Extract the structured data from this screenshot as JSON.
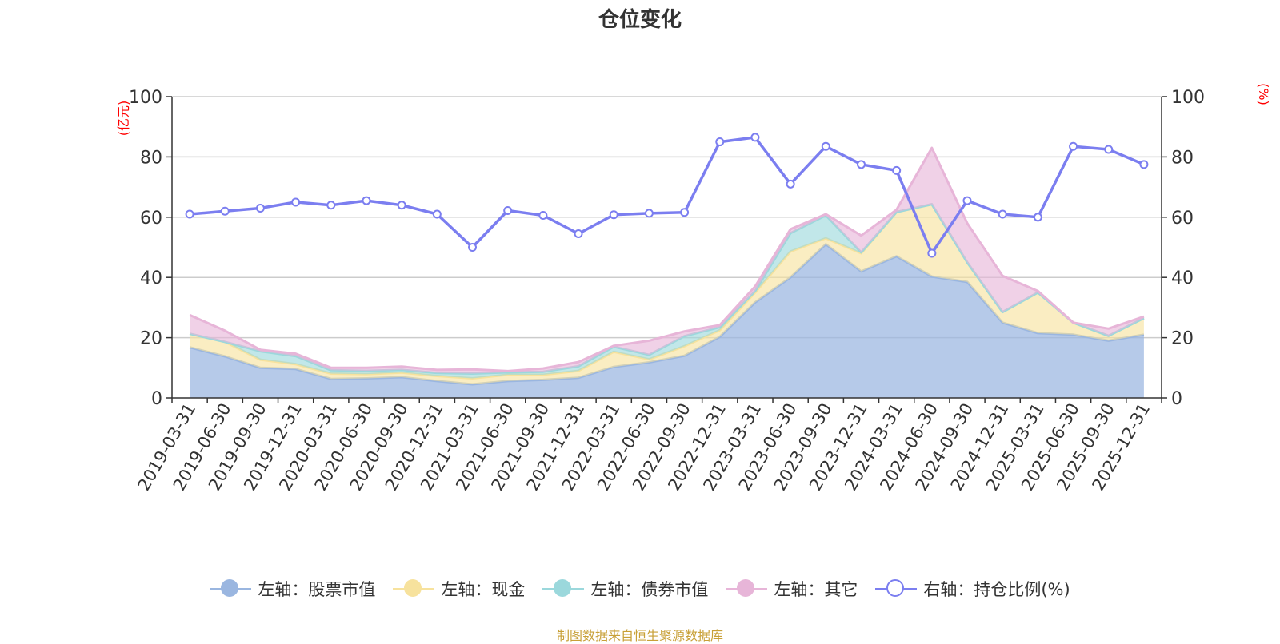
{
  "chart_data": {
    "type": "area",
    "title": "仓位变化",
    "left_axis_unit": "(亿元)",
    "right_axis_unit": "(%)",
    "ylim_left": [
      0,
      100
    ],
    "ylim_right": [
      0,
      100
    ],
    "yticks_left": [
      "0",
      "20",
      "40",
      "60",
      "80",
      "100"
    ],
    "yticks_right": [
      "0",
      "20",
      "40",
      "60",
      "80",
      "100"
    ],
    "categories": [
      "2019-03-31",
      "2019-06-30",
      "2019-09-30",
      "2019-12-31",
      "2020-03-31",
      "2020-06-30",
      "2020-09-30",
      "2020-12-31",
      "2021-03-31",
      "2021-06-30",
      "2021-09-30",
      "2021-12-31",
      "2022-03-31",
      "2022-06-30",
      "2022-09-30",
      "2022-12-31",
      "2023-03-31",
      "2023-06-30",
      "2023-09-30",
      "2023-12-31",
      "2024-03-31",
      "2024-06-30",
      "2024-09-30",
      "2024-12-31",
      "2025-03-31",
      "2025-06-30",
      "2025-09-30",
      "2025-12-31"
    ],
    "series": [
      {
        "name": "左轴：股票市值",
        "axis": "left",
        "color": "#9ab6e0",
        "values": [
          16.8,
          13.8,
          10,
          9.6,
          6.3,
          6.5,
          6.9,
          5.6,
          4.5,
          5.6,
          6,
          6.7,
          10.3,
          11.8,
          14,
          20.3,
          31.7,
          40,
          51,
          42,
          47,
          40.3,
          38.5,
          25,
          21.5,
          21,
          19,
          21
        ]
      },
      {
        "name": "左轴：现金",
        "axis": "left",
        "color": "#f7e29d",
        "values": [
          4.5,
          4.8,
          2.7,
          1.6,
          1.8,
          1.4,
          1.5,
          1.7,
          2,
          2.1,
          1.7,
          2.3,
          5,
          1,
          3.2,
          2.2,
          3.3,
          8.6,
          2,
          6,
          14.7,
          24,
          6.5,
          3.5,
          13.5,
          4,
          1.6,
          5.5
        ]
      },
      {
        "name": "左轴：债券市值",
        "axis": "left",
        "color": "#9bd8dc",
        "values": [
          0,
          0,
          2.8,
          2.7,
          1.1,
          1.1,
          0.9,
          1,
          1.6,
          0.8,
          1,
          1.5,
          1.7,
          1.5,
          3.3,
          1,
          0.5,
          6.1,
          7.6,
          0.3,
          0,
          0,
          0,
          0,
          0,
          0,
          0,
          0
        ]
      },
      {
        "name": "左轴：其它",
        "axis": "left",
        "color": "#e7b5d8",
        "values": [
          6.2,
          3.7,
          0.5,
          0.8,
          0.8,
          1,
          1.1,
          1,
          1.4,
          0.4,
          1.1,
          1.4,
          0.3,
          4.7,
          1.6,
          0.7,
          1.5,
          1.3,
          0.4,
          5.6,
          0.8,
          18.7,
          13,
          12,
          0.5,
          0,
          2.4,
          0.5
        ]
      },
      {
        "name": "右轴：持仓比例(%)",
        "axis": "right",
        "color": "#7b7ef0",
        "values": [
          61,
          62,
          63,
          65,
          64,
          65.5,
          64,
          61,
          50,
          62.2,
          60.6,
          54.5,
          60.8,
          61.3,
          61.6,
          85,
          86.5,
          71,
          83.5,
          77.5,
          75.5,
          48,
          65.5,
          61,
          60,
          83.5,
          82.5,
          77.5
        ]
      }
    ]
  },
  "source": "制图数据来自恒生聚源数据库"
}
